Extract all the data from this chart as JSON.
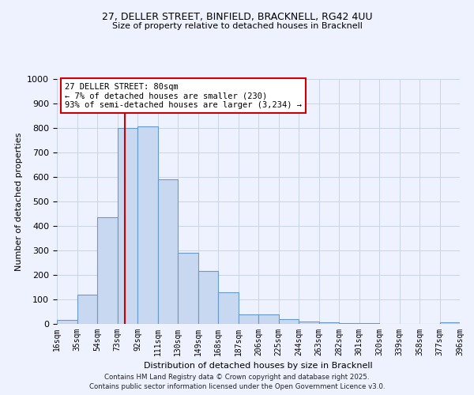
{
  "title1": "27, DELLER STREET, BINFIELD, BRACKNELL, RG42 4UU",
  "title2": "Size of property relative to detached houses in Bracknell",
  "xlabel": "Distribution of detached houses by size in Bracknell",
  "ylabel": "Number of detached properties",
  "bar_labels": [
    "16sqm",
    "35sqm",
    "54sqm",
    "73sqm",
    "92sqm",
    "111sqm",
    "130sqm",
    "149sqm",
    "168sqm",
    "187sqm",
    "206sqm",
    "225sqm",
    "244sqm",
    "263sqm",
    "282sqm",
    "301sqm",
    "320sqm",
    "339sqm",
    "358sqm",
    "377sqm",
    "396sqm"
  ],
  "bar_values": [
    15,
    120,
    435,
    800,
    805,
    590,
    290,
    215,
    130,
    40,
    40,
    18,
    10,
    5,
    3,
    2,
    1,
    0,
    0,
    5
  ],
  "bin_edges": [
    16,
    35,
    54,
    73,
    92,
    111,
    130,
    149,
    168,
    187,
    206,
    225,
    244,
    263,
    282,
    301,
    320,
    339,
    358,
    377,
    396
  ],
  "bar_color": "#c8d8f0",
  "bar_edgecolor": "#6699cc",
  "bar_linewidth": 0.8,
  "vline_x": 80,
  "vline_color": "#cc0000",
  "annotation_title": "27 DELLER STREET: 80sqm",
  "annotation_line1": "← 7% of detached houses are smaller (230)",
  "annotation_line2": "93% of semi-detached houses are larger (3,234) →",
  "annotation_box_facecolor": "#ffffff",
  "annotation_box_edgecolor": "#cc0000",
  "ylim": [
    0,
    1000
  ],
  "yticks": [
    0,
    100,
    200,
    300,
    400,
    500,
    600,
    700,
    800,
    900,
    1000
  ],
  "background_color": "#eef2ff",
  "footer1": "Contains HM Land Registry data © Crown copyright and database right 2025.",
  "footer2": "Contains public sector information licensed under the Open Government Licence v3.0.",
  "grid_color": "#c8d4e8"
}
